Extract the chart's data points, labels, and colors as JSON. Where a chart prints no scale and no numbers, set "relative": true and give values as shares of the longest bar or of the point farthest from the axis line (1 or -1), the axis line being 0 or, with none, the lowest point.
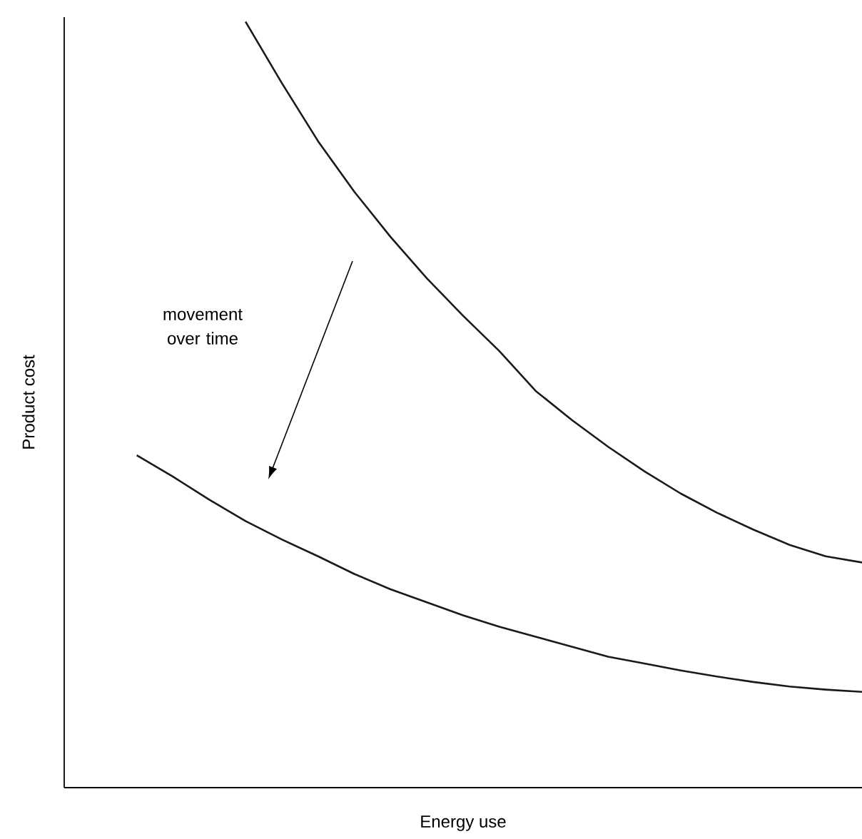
{
  "chart_data": {
    "type": "line",
    "relative": true,
    "xlabel": "Energy use",
    "ylabel": "Product cost",
    "annotations": [
      "movement over time"
    ],
    "marker": "none",
    "line_style": "solid",
    "categories": [
      null,
      null,
      null,
      null,
      null,
      null,
      null,
      null,
      null,
      null,
      null,
      null,
      null,
      null,
      null,
      null,
      null,
      null,
      null,
      null,
      null,
      null,
      null
    ],
    "series": [
      {
        "color": "#1a1a1a",
        "values": [
          null,
          null,
          null,
          null,
          null,
          1.0,
          0.92,
          0.844,
          0.778,
          0.719,
          0.665,
          0.616,
          0.57,
          0.518,
          0.48,
          0.445,
          0.413,
          0.384,
          0.359,
          0.337,
          0.317,
          0.302,
          0.294
        ]
      },
      {
        "color": "#1a1a1a",
        "values": [
          null,
          null,
          0.434,
          0.406,
          0.376,
          0.348,
          0.324,
          0.302,
          0.279,
          0.259,
          0.242,
          0.225,
          0.21,
          0.197,
          0.184,
          0.171,
          0.162,
          0.153,
          0.145,
          0.138,
          0.132,
          0.128,
          0.125
        ]
      }
    ]
  }
}
